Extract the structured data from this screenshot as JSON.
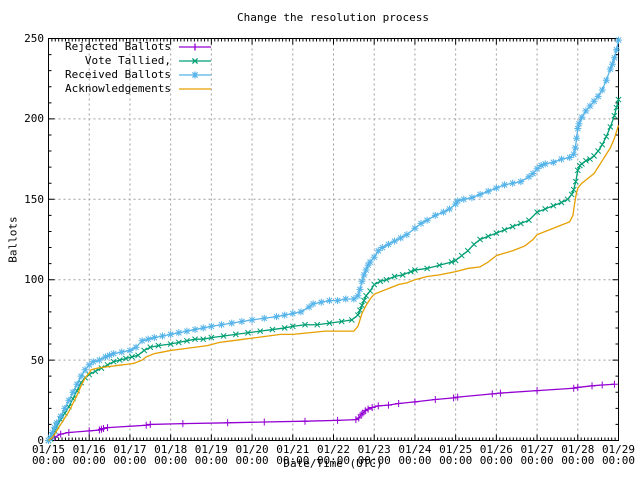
{
  "chart_data": {
    "type": "line",
    "title": "Change the resolution process",
    "xlabel": "Date/Time (UTC)",
    "ylabel": "Ballots",
    "ylim": [
      0,
      250
    ],
    "y_ticks": [
      0,
      50,
      100,
      150,
      200,
      250
    ],
    "y_minor_step": 10,
    "x_days_span": 14,
    "x_minor_per_day": 12,
    "grid": "dashed gray at every date and every 50 ballots",
    "legend_position": "top-left",
    "x_axis": {
      "dates": [
        "01/15",
        "01/16",
        "01/17",
        "01/18",
        "01/19",
        "01/20",
        "01/21",
        "01/22",
        "01/23",
        "01/24",
        "01/25",
        "01/26",
        "01/27",
        "01/28",
        "01/29"
      ],
      "time_label": "00:00"
    },
    "series": [
      {
        "label": "Rejected Ballots",
        "color": "#9400d3",
        "marker": "plus",
        "points": [
          [
            0,
            0
          ],
          [
            0.15,
            2
          ],
          [
            0.3,
            4
          ],
          [
            0.5,
            5
          ],
          [
            1.0,
            6
          ],
          [
            1.25,
            6.5
          ],
          [
            1.3,
            7
          ],
          [
            1.35,
            7.5
          ],
          [
            1.45,
            8
          ],
          [
            2.4,
            9.5
          ],
          [
            2.5,
            10
          ],
          [
            3.3,
            10.5
          ],
          [
            4.4,
            11
          ],
          [
            5.3,
            11.5
          ],
          [
            6.3,
            12
          ],
          [
            7.1,
            12.5
          ],
          [
            7.55,
            13
          ],
          [
            7.62,
            14
          ],
          [
            7.68,
            16
          ],
          [
            7.72,
            17
          ],
          [
            7.78,
            18.5
          ],
          [
            7.85,
            19.5
          ],
          [
            7.95,
            20.5
          ],
          [
            8.1,
            21.5
          ],
          [
            8.35,
            22
          ],
          [
            8.6,
            23
          ],
          [
            9.0,
            24
          ],
          [
            9.5,
            25.5
          ],
          [
            9.95,
            26.5
          ],
          [
            10.05,
            27
          ],
          [
            10.9,
            29
          ],
          [
            11.1,
            29.5
          ],
          [
            12.0,
            31
          ],
          [
            12.9,
            32.5
          ],
          [
            13.0,
            33
          ],
          [
            13.35,
            34
          ],
          [
            13.6,
            34.5
          ],
          [
            13.9,
            35
          ]
        ]
      },
      {
        "label": "Vote Tallied,",
        "color": "#009e73",
        "marker": "cross",
        "points": [
          [
            0,
            0
          ],
          [
            0.05,
            1
          ],
          [
            0.1,
            3
          ],
          [
            0.15,
            6
          ],
          [
            0.2,
            9
          ],
          [
            0.3,
            13
          ],
          [
            0.4,
            17
          ],
          [
            0.5,
            21
          ],
          [
            0.6,
            26
          ],
          [
            0.7,
            31
          ],
          [
            0.8,
            36
          ],
          [
            0.9,
            39
          ],
          [
            1.0,
            41
          ],
          [
            1.15,
            43
          ],
          [
            1.3,
            45
          ],
          [
            1.45,
            47
          ],
          [
            1.6,
            49
          ],
          [
            1.75,
            50
          ],
          [
            1.9,
            51
          ],
          [
            2.05,
            52
          ],
          [
            2.2,
            53
          ],
          [
            2.35,
            56
          ],
          [
            2.5,
            58
          ],
          [
            2.7,
            59
          ],
          [
            3.0,
            60
          ],
          [
            3.2,
            61
          ],
          [
            3.4,
            62
          ],
          [
            3.6,
            63
          ],
          [
            3.8,
            63
          ],
          [
            4.0,
            64
          ],
          [
            4.3,
            65
          ],
          [
            4.6,
            66
          ],
          [
            4.9,
            67
          ],
          [
            5.2,
            68
          ],
          [
            5.5,
            69
          ],
          [
            5.8,
            70
          ],
          [
            6.0,
            71
          ],
          [
            6.3,
            72
          ],
          [
            6.6,
            72
          ],
          [
            6.9,
            73
          ],
          [
            7.2,
            74
          ],
          [
            7.45,
            75
          ],
          [
            7.6,
            78
          ],
          [
            7.65,
            81
          ],
          [
            7.7,
            84
          ],
          [
            7.75,
            87
          ],
          [
            7.8,
            90
          ],
          [
            7.9,
            93
          ],
          [
            8.0,
            97
          ],
          [
            8.15,
            99
          ],
          [
            8.3,
            100
          ],
          [
            8.5,
            102
          ],
          [
            8.7,
            103
          ],
          [
            8.9,
            105
          ],
          [
            9.0,
            106
          ],
          [
            9.3,
            107
          ],
          [
            9.6,
            109
          ],
          [
            9.9,
            111
          ],
          [
            10.0,
            112
          ],
          [
            10.15,
            115
          ],
          [
            10.3,
            118
          ],
          [
            10.45,
            122
          ],
          [
            10.6,
            125
          ],
          [
            10.8,
            127
          ],
          [
            11.0,
            129
          ],
          [
            11.2,
            131
          ],
          [
            11.4,
            133
          ],
          [
            11.6,
            135
          ],
          [
            11.8,
            137
          ],
          [
            12.0,
            142
          ],
          [
            12.2,
            144
          ],
          [
            12.4,
            146
          ],
          [
            12.6,
            148
          ],
          [
            12.75,
            150
          ],
          [
            12.85,
            153
          ],
          [
            12.9,
            156
          ],
          [
            12.95,
            161
          ],
          [
            13.0,
            168
          ],
          [
            13.05,
            171
          ],
          [
            13.1,
            172
          ],
          [
            13.2,
            174
          ],
          [
            13.3,
            175
          ],
          [
            13.4,
            177
          ],
          [
            13.5,
            180
          ],
          [
            13.6,
            184
          ],
          [
            13.7,
            189
          ],
          [
            13.8,
            195
          ],
          [
            13.9,
            202
          ],
          [
            13.95,
            207
          ],
          [
            14.0,
            212
          ]
        ]
      },
      {
        "label": "Received Ballots",
        "color": "#56b4e9",
        "marker": "star",
        "points": [
          [
            0,
            0
          ],
          [
            0.05,
            2
          ],
          [
            0.1,
            5
          ],
          [
            0.15,
            8
          ],
          [
            0.2,
            11
          ],
          [
            0.3,
            15
          ],
          [
            0.4,
            20
          ],
          [
            0.5,
            25
          ],
          [
            0.6,
            30
          ],
          [
            0.7,
            35
          ],
          [
            0.8,
            40
          ],
          [
            0.9,
            44
          ],
          [
            1.0,
            47
          ],
          [
            1.1,
            49
          ],
          [
            1.25,
            50
          ],
          [
            1.4,
            52
          ],
          [
            1.5,
            53
          ],
          [
            1.6,
            54
          ],
          [
            1.8,
            55
          ],
          [
            2.0,
            56
          ],
          [
            2.15,
            58
          ],
          [
            2.3,
            62
          ],
          [
            2.45,
            63
          ],
          [
            2.6,
            64
          ],
          [
            2.8,
            65
          ],
          [
            3.0,
            66
          ],
          [
            3.2,
            67
          ],
          [
            3.4,
            68
          ],
          [
            3.6,
            69
          ],
          [
            3.8,
            70
          ],
          [
            4.0,
            71
          ],
          [
            4.25,
            72
          ],
          [
            4.5,
            73
          ],
          [
            4.75,
            74
          ],
          [
            5.0,
            75
          ],
          [
            5.3,
            76
          ],
          [
            5.6,
            77
          ],
          [
            5.8,
            78
          ],
          [
            6.0,
            79
          ],
          [
            6.2,
            80
          ],
          [
            6.4,
            83
          ],
          [
            6.5,
            85
          ],
          [
            6.7,
            86
          ],
          [
            6.9,
            87
          ],
          [
            7.1,
            87
          ],
          [
            7.3,
            88
          ],
          [
            7.5,
            88
          ],
          [
            7.6,
            90
          ],
          [
            7.65,
            94
          ],
          [
            7.7,
            99
          ],
          [
            7.75,
            103
          ],
          [
            7.8,
            106
          ],
          [
            7.85,
            109
          ],
          [
            7.9,
            111
          ],
          [
            8.0,
            114
          ],
          [
            8.1,
            118
          ],
          [
            8.2,
            120
          ],
          [
            8.35,
            122
          ],
          [
            8.5,
            124
          ],
          [
            8.65,
            126
          ],
          [
            8.8,
            128
          ],
          [
            9.0,
            132
          ],
          [
            9.15,
            135
          ],
          [
            9.3,
            137
          ],
          [
            9.5,
            140
          ],
          [
            9.7,
            142
          ],
          [
            9.85,
            144
          ],
          [
            10.0,
            147
          ],
          [
            10.05,
            149
          ],
          [
            10.2,
            150
          ],
          [
            10.4,
            151
          ],
          [
            10.6,
            153
          ],
          [
            10.8,
            155
          ],
          [
            11.0,
            157
          ],
          [
            11.2,
            159
          ],
          [
            11.4,
            160
          ],
          [
            11.6,
            161
          ],
          [
            11.8,
            164
          ],
          [
            11.9,
            166
          ],
          [
            12.0,
            169
          ],
          [
            12.1,
            171
          ],
          [
            12.2,
            172
          ],
          [
            12.4,
            173
          ],
          [
            12.6,
            175
          ],
          [
            12.8,
            176
          ],
          [
            12.9,
            178
          ],
          [
            12.94,
            182
          ],
          [
            12.97,
            188
          ],
          [
            13.0,
            194
          ],
          [
            13.03,
            197
          ],
          [
            13.1,
            201
          ],
          [
            13.2,
            205
          ],
          [
            13.3,
            208
          ],
          [
            13.4,
            211
          ],
          [
            13.5,
            214
          ],
          [
            13.6,
            218
          ],
          [
            13.7,
            224
          ],
          [
            13.8,
            231
          ],
          [
            13.85,
            234
          ],
          [
            13.9,
            238
          ],
          [
            13.95,
            243
          ],
          [
            14.0,
            249
          ]
        ]
      },
      {
        "label": "Acknowledgements",
        "color": "#e69f00",
        "marker": "none",
        "points": [
          [
            0,
            0
          ],
          [
            0.1,
            2
          ],
          [
            0.2,
            6
          ],
          [
            0.3,
            10
          ],
          [
            0.4,
            14
          ],
          [
            0.5,
            18
          ],
          [
            0.6,
            23
          ],
          [
            0.7,
            28
          ],
          [
            0.8,
            34
          ],
          [
            0.9,
            39
          ],
          [
            1.0,
            42
          ],
          [
            1.05,
            44
          ],
          [
            1.2,
            45
          ],
          [
            1.5,
            46
          ],
          [
            1.8,
            47
          ],
          [
            2.1,
            48
          ],
          [
            2.3,
            50
          ],
          [
            2.4,
            52
          ],
          [
            2.6,
            54
          ],
          [
            2.8,
            55
          ],
          [
            3.0,
            56
          ],
          [
            3.3,
            57
          ],
          [
            3.6,
            58
          ],
          [
            3.9,
            59
          ],
          [
            4.2,
            61
          ],
          [
            4.5,
            62
          ],
          [
            4.8,
            63
          ],
          [
            5.1,
            64
          ],
          [
            5.4,
            65
          ],
          [
            5.7,
            66
          ],
          [
            6.0,
            66
          ],
          [
            6.4,
            67
          ],
          [
            6.8,
            68
          ],
          [
            7.2,
            68
          ],
          [
            7.5,
            68
          ],
          [
            7.6,
            71
          ],
          [
            7.65,
            75
          ],
          [
            7.7,
            79
          ],
          [
            7.8,
            84
          ],
          [
            7.9,
            88
          ],
          [
            8.0,
            91
          ],
          [
            8.2,
            93
          ],
          [
            8.4,
            95
          ],
          [
            8.6,
            97
          ],
          [
            8.8,
            98
          ],
          [
            9.0,
            100
          ],
          [
            9.3,
            102
          ],
          [
            9.6,
            103
          ],
          [
            10.0,
            105
          ],
          [
            10.3,
            107
          ],
          [
            10.6,
            108
          ],
          [
            10.8,
            111
          ],
          [
            11.0,
            115
          ],
          [
            11.4,
            118
          ],
          [
            11.7,
            121
          ],
          [
            11.9,
            125
          ],
          [
            12.0,
            128
          ],
          [
            12.3,
            131
          ],
          [
            12.6,
            134
          ],
          [
            12.8,
            136
          ],
          [
            12.88,
            140
          ],
          [
            12.92,
            147
          ],
          [
            12.96,
            153
          ],
          [
            13.0,
            157
          ],
          [
            13.1,
            160
          ],
          [
            13.25,
            163
          ],
          [
            13.4,
            166
          ],
          [
            13.5,
            170
          ],
          [
            13.6,
            174
          ],
          [
            13.7,
            178
          ],
          [
            13.8,
            182
          ],
          [
            13.9,
            188
          ],
          [
            13.95,
            192
          ],
          [
            14.0,
            196
          ]
        ]
      }
    ],
    "colors": {
      "grid": "#9e9e9e",
      "border": "#000000",
      "background": "#ffffff"
    }
  }
}
